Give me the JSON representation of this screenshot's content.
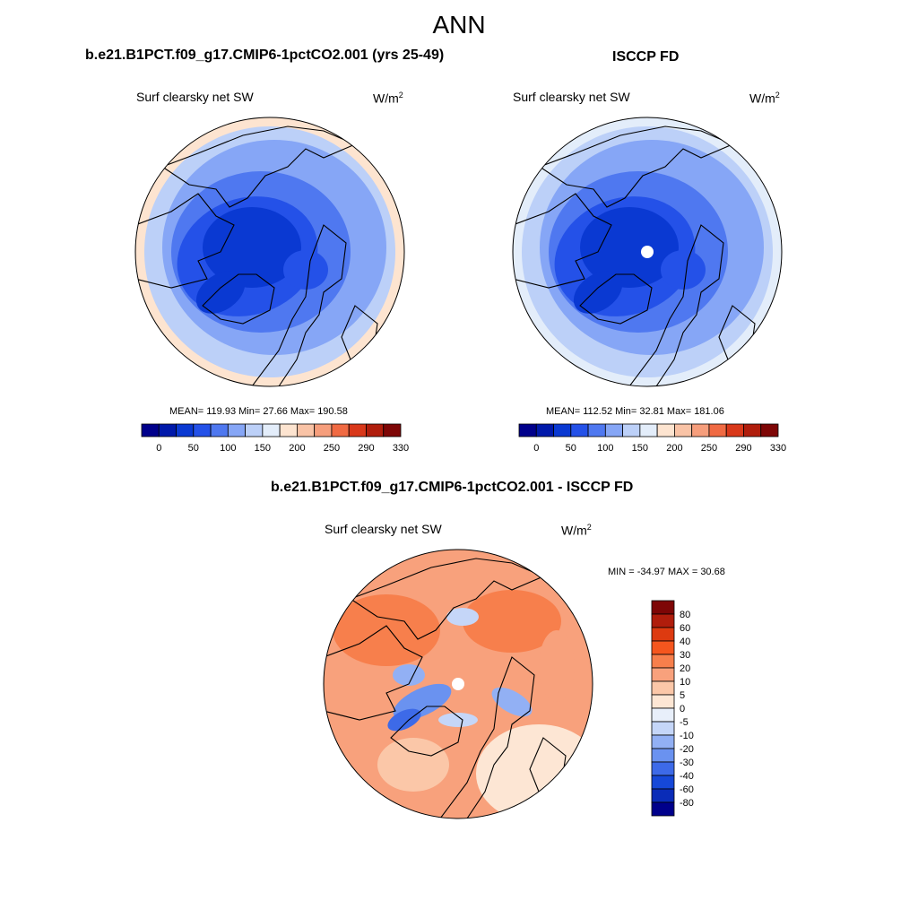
{
  "title": "ANN",
  "chart_data": [
    {
      "type": "heatmap",
      "projection": "north-polar-stereographic",
      "title": "b.e21.B1PCT.f09_g17.CMIP6-1pctCO2.001 (yrs 25-49)",
      "variable": "Surf clearsky net SW",
      "units_base": "W/m",
      "units_exp": "2",
      "stats": "MEAN= 119.93  Min=  27.66  Max= 190.58",
      "mean": 119.93,
      "min": 27.66,
      "max": 190.58,
      "colorbar_labels": [
        "0",
        "50",
        "100",
        "150",
        "200",
        "250",
        "290",
        "330"
      ],
      "colors": [
        "#00008b",
        "#0019aa",
        "#0a39d2",
        "#2451e8",
        "#4f78f0",
        "#86a6f6",
        "#bcd0f8",
        "#e3edfa",
        "#fde4d0",
        "#f9c3a6",
        "#f69e7c",
        "#f06a43",
        "#d9381a",
        "#b01d0c",
        "#7e0606"
      ]
    },
    {
      "type": "heatmap",
      "projection": "north-polar-stereographic",
      "title": "ISCCP FD",
      "variable": "Surf clearsky net SW",
      "units_base": "W/m",
      "units_exp": "2",
      "stats": "MEAN= 112.52  Min=  32.81  Max= 181.06",
      "mean": 112.52,
      "min": 32.81,
      "max": 181.06,
      "colorbar_labels": [
        "0",
        "50",
        "100",
        "150",
        "200",
        "250",
        "290",
        "330"
      ],
      "colors": [
        "#00008b",
        "#0019aa",
        "#0a39d2",
        "#2451e8",
        "#4f78f0",
        "#86a6f6",
        "#bcd0f8",
        "#e3edfa",
        "#fde4d0",
        "#f9c3a6",
        "#f69e7c",
        "#f06a43",
        "#d9381a",
        "#b01d0c",
        "#7e0606"
      ]
    },
    {
      "type": "heatmap",
      "projection": "north-polar-stereographic",
      "title": "b.e21.B1PCT.f09_g17.CMIP6-1pctCO2.001 - ISCCP FD",
      "variable": "Surf clearsky net SW",
      "units_base": "W/m",
      "units_exp": "2",
      "stats": "MIN = -34.97 MAX =  30.68",
      "min": -34.97,
      "max": 30.68,
      "colorbar_labels": [
        "80",
        "60",
        "40",
        "30",
        "20",
        "10",
        "5",
        "0",
        "-5",
        "-10",
        "-20",
        "-30",
        "-40",
        "-60",
        "-80"
      ],
      "colors": [
        "#7e0606",
        "#b01d0c",
        "#dd3a10",
        "#f5561e",
        "#f77f4c",
        "#f8a17c",
        "#fbc7a8",
        "#fde6d4",
        "#e8effa",
        "#c5d6f8",
        "#92b0f4",
        "#6a92f0",
        "#3d6ae8",
        "#1648d8",
        "#0a2cb8",
        "#00008b"
      ]
    }
  ]
}
